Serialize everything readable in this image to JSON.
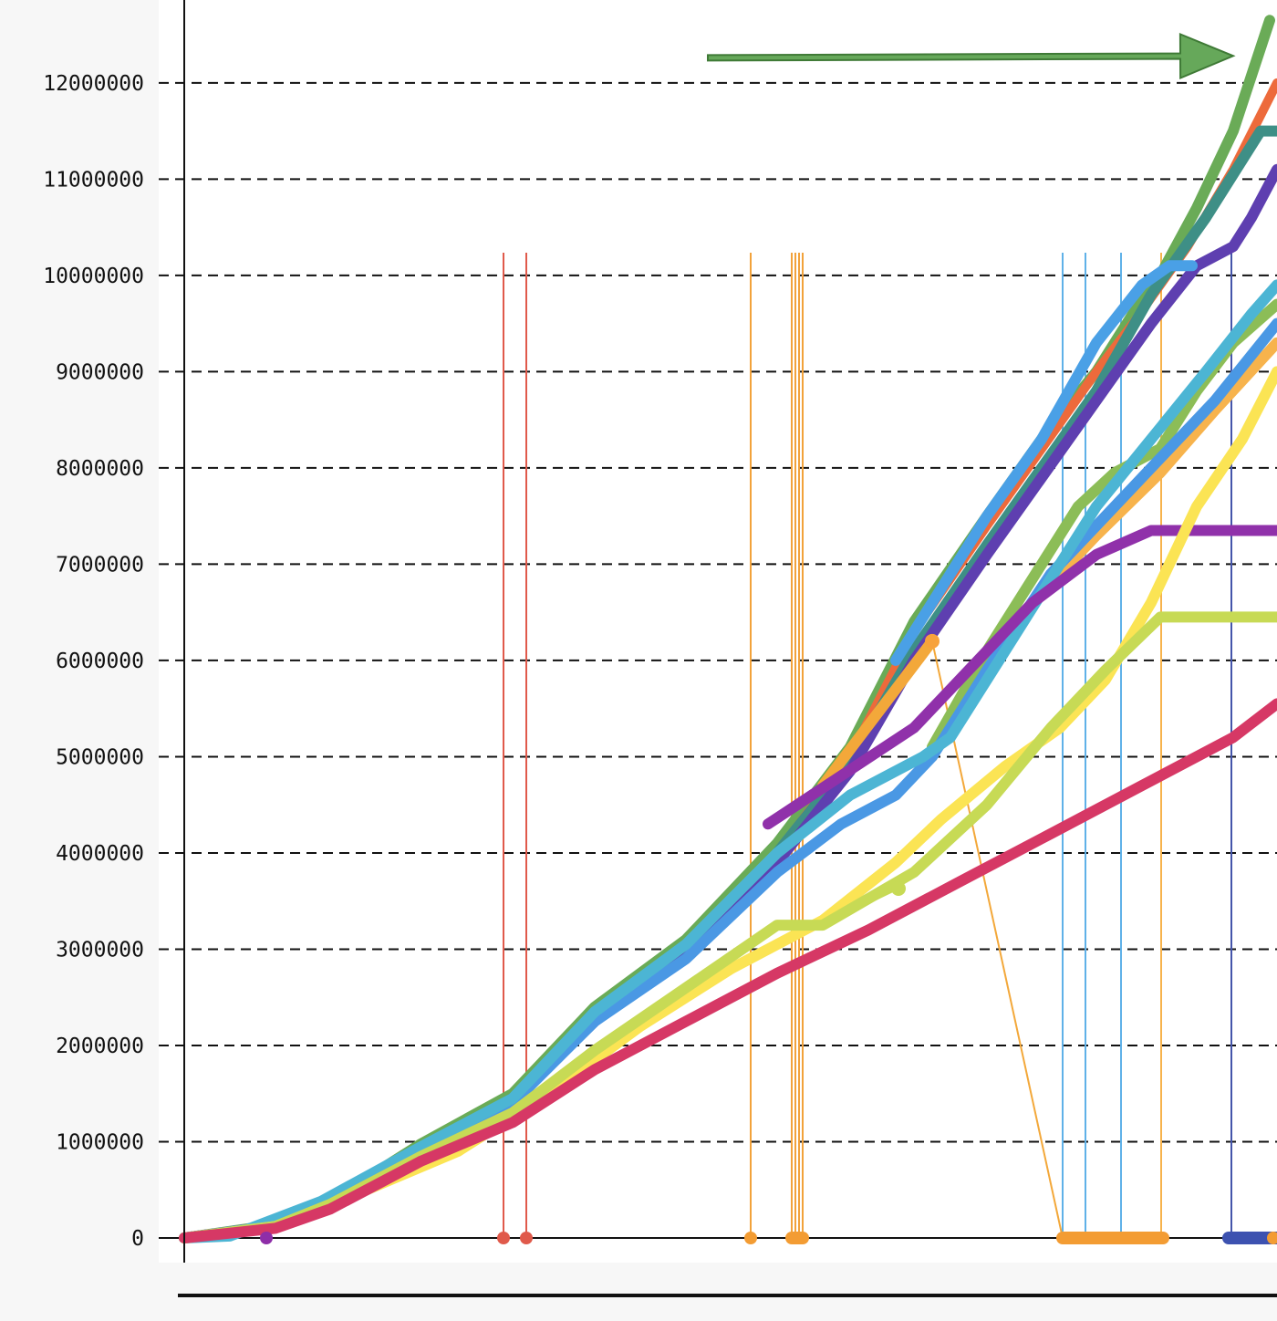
{
  "chart_data": {
    "type": "line",
    "title": "",
    "xlabel": "",
    "ylabel": "",
    "ylim": [
      0,
      12700000
    ],
    "xlim": [
      0,
      1198
    ],
    "y_ticks": [
      0,
      1000000,
      2000000,
      3000000,
      4000000,
      5000000,
      6000000,
      7000000,
      8000000,
      9000000,
      10000000,
      11000000,
      12000000
    ],
    "y_tick_labels": [
      "0",
      "1000000",
      "2000000",
      "3000000",
      "4000000",
      "5000000",
      "6000000",
      "7000000",
      "8000000",
      "9000000",
      "10000000",
      "11000000",
      "12000000"
    ],
    "grid": "horizontal dashed",
    "legend": "none",
    "annotation": {
      "type": "arrow",
      "color": "#66a85a",
      "x_from": 574,
      "x_to": 1150,
      "y_from": 12260000,
      "y_to": 12280000
    },
    "series": [
      {
        "color": "#6aab57",
        "width": 12,
        "points": [
          [
            0,
            0
          ],
          [
            80,
            110000
          ],
          [
            160,
            380000
          ],
          [
            260,
            980000
          ],
          [
            360,
            1500000
          ],
          [
            450,
            2400000
          ],
          [
            550,
            3100000
          ],
          [
            650,
            4100000
          ],
          [
            730,
            5100000
          ],
          [
            800,
            6400000
          ],
          [
            880,
            7500000
          ],
          [
            940,
            8300000
          ],
          [
            1000,
            9000000
          ],
          [
            1040,
            9600000
          ],
          [
            1070,
            10000000
          ],
          [
            1110,
            10700000
          ],
          [
            1150,
            11500000
          ],
          [
            1190,
            12650000
          ]
        ]
      },
      {
        "color": "#ed6a3b",
        "width": 10,
        "points": [
          [
            0,
            0
          ],
          [
            80,
            100000
          ],
          [
            160,
            350000
          ],
          [
            260,
            950000
          ],
          [
            360,
            1450000
          ],
          [
            450,
            2300000
          ],
          [
            550,
            3000000
          ],
          [
            650,
            4000000
          ],
          [
            730,
            5000000
          ],
          [
            800,
            6300000
          ],
          [
            880,
            7400000
          ],
          [
            940,
            8200000
          ],
          [
            1000,
            9000000
          ],
          [
            1040,
            9500000
          ],
          [
            1100,
            10300000
          ],
          [
            1150,
            11100000
          ],
          [
            1198,
            12000000
          ]
        ]
      },
      {
        "color": "#3e8f86",
        "width": 12,
        "points": [
          [
            0,
            0
          ],
          [
            80,
            100000
          ],
          [
            160,
            350000
          ],
          [
            260,
            900000
          ],
          [
            360,
            1450000
          ],
          [
            450,
            2300000
          ],
          [
            550,
            3000000
          ],
          [
            650,
            4000000
          ],
          [
            730,
            4950000
          ],
          [
            800,
            6100000
          ],
          [
            880,
            7200000
          ],
          [
            940,
            8000000
          ],
          [
            1000,
            8800000
          ],
          [
            1060,
            9800000
          ],
          [
            1120,
            10600000
          ],
          [
            1180,
            11500000
          ],
          [
            1198,
            11500000
          ]
        ]
      },
      {
        "color": "#5e3fb0",
        "width": 12,
        "points": [
          [
            0,
            0
          ],
          [
            80,
            100000
          ],
          [
            160,
            350000
          ],
          [
            260,
            900000
          ],
          [
            360,
            1420000
          ],
          [
            450,
            2250000
          ],
          [
            550,
            2950000
          ],
          [
            650,
            3900000
          ],
          [
            730,
            4850000
          ],
          [
            800,
            6000000
          ],
          [
            880,
            7100000
          ],
          [
            940,
            7900000
          ],
          [
            1000,
            8700000
          ],
          [
            1060,
            9500000
          ],
          [
            1110,
            10100000
          ],
          [
            1150,
            10300000
          ],
          [
            1170,
            10600000
          ],
          [
            1198,
            11100000
          ]
        ]
      },
      {
        "color": "#4aa0e6",
        "width": 12,
        "points": [
          [
            780,
            6000000
          ],
          [
            880,
            7500000
          ],
          [
            940,
            8300000
          ],
          [
            1000,
            9300000
          ],
          [
            1050,
            9900000
          ],
          [
            1080,
            10100000
          ],
          [
            1105,
            10100000
          ]
        ]
      },
      {
        "color": "#f3a83a",
        "width": 12,
        "points": [
          [
            700,
            4700000
          ],
          [
            780,
            5700000
          ],
          [
            820,
            6200000
          ]
        ]
      },
      {
        "color": "#f7b34c",
        "width": 12,
        "points": [
          [
            820,
            5000000
          ],
          [
            880,
            6000000
          ],
          [
            950,
            6800000
          ],
          [
            1000,
            7300000
          ],
          [
            1070,
            7950000
          ],
          [
            1130,
            8600000
          ],
          [
            1198,
            9300000
          ]
        ]
      },
      {
        "color": "#8cbd57",
        "width": 12,
        "points": [
          [
            820,
            5100000
          ],
          [
            880,
            6100000
          ],
          [
            940,
            7000000
          ],
          [
            980,
            7600000
          ],
          [
            1020,
            7950000
          ],
          [
            1070,
            8200000
          ],
          [
            1110,
            8800000
          ],
          [
            1150,
            9300000
          ],
          [
            1198,
            9700000
          ]
        ]
      },
      {
        "color": "#4a98e4",
        "width": 12,
        "points": [
          [
            0,
            0
          ],
          [
            80,
            100000
          ],
          [
            160,
            350000
          ],
          [
            260,
            900000
          ],
          [
            360,
            1400000
          ],
          [
            450,
            2250000
          ],
          [
            550,
            2900000
          ],
          [
            650,
            3800000
          ],
          [
            720,
            4300000
          ],
          [
            780,
            4600000
          ],
          [
            820,
            5000000
          ],
          [
            880,
            5900000
          ],
          [
            950,
            6900000
          ],
          [
            1000,
            7400000
          ],
          [
            1060,
            8000000
          ],
          [
            1130,
            8700000
          ],
          [
            1198,
            9500000
          ]
        ]
      },
      {
        "color": "#4cb5d4",
        "width": 12,
        "points": [
          [
            0,
            0
          ],
          [
            50,
            20000
          ],
          [
            150,
            380000
          ],
          [
            260,
            950000
          ],
          [
            360,
            1450000
          ],
          [
            450,
            2350000
          ],
          [
            550,
            3050000
          ],
          [
            650,
            4000000
          ],
          [
            730,
            4600000
          ],
          [
            810,
            5000000
          ],
          [
            840,
            5200000
          ],
          [
            880,
            5800000
          ],
          [
            940,
            6700000
          ],
          [
            1000,
            7600000
          ],
          [
            1060,
            8300000
          ],
          [
            1120,
            9000000
          ],
          [
            1170,
            9600000
          ],
          [
            1198,
            9900000
          ]
        ]
      },
      {
        "color": "#9031aa",
        "width": 12,
        "points": [
          [
            640,
            4300000
          ],
          [
            720,
            4800000
          ],
          [
            800,
            5300000
          ],
          [
            860,
            5900000
          ],
          [
            930,
            6600000
          ],
          [
            1000,
            7100000
          ],
          [
            1060,
            7350000
          ],
          [
            1198,
            7350000
          ]
        ]
      },
      {
        "color": "#fbe454",
        "width": 12,
        "points": [
          [
            0,
            0
          ],
          [
            100,
            120000
          ],
          [
            200,
            500000
          ],
          [
            300,
            900000
          ],
          [
            400,
            1500000
          ],
          [
            500,
            2200000
          ],
          [
            600,
            2800000
          ],
          [
            700,
            3300000
          ],
          [
            780,
            3900000
          ],
          [
            830,
            4350000
          ],
          [
            900,
            4900000
          ],
          [
            960,
            5300000
          ],
          [
            1010,
            5800000
          ],
          [
            1060,
            6600000
          ],
          [
            1110,
            7600000
          ],
          [
            1160,
            8300000
          ],
          [
            1198,
            9000000
          ]
        ]
      },
      {
        "color": "#c7da55",
        "width": 12,
        "points": [
          [
            0,
            0
          ],
          [
            100,
            120000
          ],
          [
            160,
            350000
          ],
          [
            260,
            850000
          ],
          [
            360,
            1300000
          ],
          [
            450,
            1950000
          ],
          [
            550,
            2600000
          ],
          [
            650,
            3250000
          ],
          [
            700,
            3250000
          ],
          [
            800,
            3800000
          ],
          [
            880,
            4500000
          ],
          [
            950,
            5300000
          ],
          [
            1010,
            5900000
          ],
          [
            1070,
            6450000
          ],
          [
            1198,
            6450000
          ]
        ]
      },
      {
        "color": "#d63865",
        "width": 12,
        "points": [
          [
            0,
            0
          ],
          [
            100,
            100000
          ],
          [
            160,
            300000
          ],
          [
            260,
            800000
          ],
          [
            360,
            1200000
          ],
          [
            450,
            1750000
          ],
          [
            550,
            2250000
          ],
          [
            650,
            2750000
          ],
          [
            750,
            3200000
          ],
          [
            850,
            3700000
          ],
          [
            950,
            4200000
          ],
          [
            1050,
            4700000
          ],
          [
            1150,
            5200000
          ],
          [
            1198,
            5550000
          ]
        ]
      }
    ],
    "drops": [
      {
        "color": "#e05a4b",
        "xs": [
          350,
          375
        ]
      },
      {
        "color": "#f2a23b",
        "xs": [
          621,
          666,
          670,
          674,
          678
        ]
      },
      {
        "color": "#f7b34c",
        "xs": [
          1071
        ]
      },
      {
        "color": "#5fb1e8",
        "xs": [
          963,
          988,
          1027
        ]
      },
      {
        "color": "#4455aa",
        "xs": [
          1148
        ]
      }
    ],
    "zero_runs": [
      {
        "color": "#f39c33",
        "x_from": 963,
        "x_to": 1073
      },
      {
        "color": "#3d52b0",
        "x_from": 1145,
        "x_to": 1198
      },
      {
        "color": "#f39c33",
        "x_from": 666,
        "x_to": 678
      }
    ],
    "zero_dots": [
      {
        "color": "#8e2ea8",
        "x": 90
      },
      {
        "color": "#e05a4b",
        "x": 350
      },
      {
        "color": "#e05a4b",
        "x": 375
      },
      {
        "color": "#f39c33",
        "x": 621
      },
      {
        "color": "#f39c33",
        "x": 1194
      }
    ],
    "markers": [
      {
        "color": "#c7da55",
        "x": 783,
        "y": 3630000
      },
      {
        "color": "#f7a23b",
        "x": 820,
        "y": 6200000
      }
    ],
    "thin_links": [
      {
        "color": "#c7da55",
        "points": [
          [
            700,
            3250000
          ],
          [
            783,
            3630000
          ],
          [
            800,
            3800000
          ]
        ]
      },
      {
        "color": "#f3a83a",
        "points": [
          [
            820,
            6200000
          ],
          [
            963,
            0
          ]
        ]
      }
    ]
  }
}
